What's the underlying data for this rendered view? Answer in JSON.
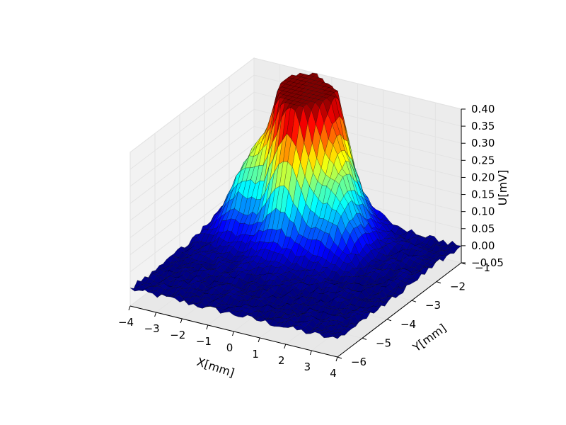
{
  "chart_data": {
    "type": "surface3d",
    "title": "",
    "xlabel": "X[mm]",
    "ylabel": "Y[mm]",
    "zlabel": "U[mV]",
    "xlim": [
      -4,
      4
    ],
    "ylim": [
      -6,
      -1
    ],
    "zlim": [
      -0.05,
      0.4
    ],
    "xticks": [
      "−4",
      "−3",
      "−2",
      "−1",
      "0",
      "1",
      "2",
      "3",
      "4"
    ],
    "yticks": [
      "−6",
      "−5",
      "−4",
      "−3",
      "−2",
      "−1"
    ],
    "zticks": [
      "−0.05",
      "0.00",
      "0.05",
      "0.10",
      "0.15",
      "0.20",
      "0.25",
      "0.30",
      "0.35",
      "0.40"
    ],
    "colormap": "jet",
    "baseline_mV": 0.0,
    "grid": true,
    "peaks": [
      {
        "x": -1.8,
        "y": -1.3,
        "u": 0.4
      },
      {
        "x": -1.5,
        "y": -2.0,
        "u": 0.34
      },
      {
        "x": -0.6,
        "y": -1.6,
        "u": 0.32
      },
      {
        "x": -0.9,
        "y": -2.6,
        "u": 0.23
      },
      {
        "x": -3.0,
        "y": -1.6,
        "u": 0.12
      },
      {
        "x": -2.8,
        "y": -2.5,
        "u": 0.15
      },
      {
        "x": 0.3,
        "y": -2.0,
        "u": 0.13
      },
      {
        "x": 0.8,
        "y": -2.6,
        "u": 0.1
      }
    ]
  }
}
